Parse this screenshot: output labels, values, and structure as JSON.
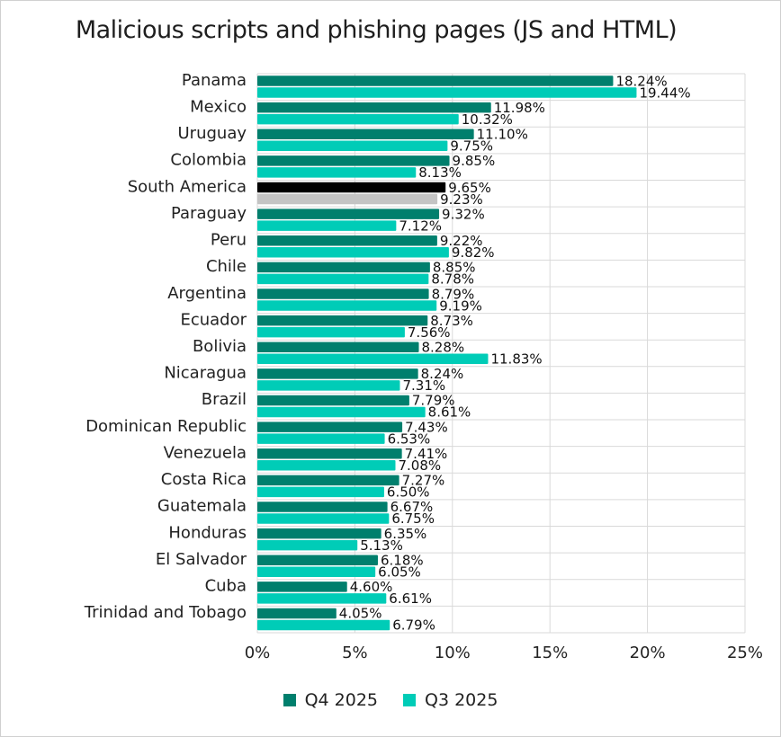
{
  "chart_data": {
    "type": "bar",
    "orientation": "horizontal",
    "title": "Malicious scripts and phishing pages (JS and HTML)",
    "categories": [
      "Panama",
      "Mexico",
      "Uruguay",
      "Colombia",
      "South America",
      "Paraguay",
      "Peru",
      "Chile",
      "Argentina",
      "Ecuador",
      "Bolivia",
      "Nicaragua",
      "Brazil",
      "Dominican Republic",
      "Venezuela",
      "Costa Rica",
      "Guatemala",
      "Honduras",
      "El Salvador",
      "Cuba",
      "Trinidad and Tobago"
    ],
    "series": [
      {
        "name": "Q4 2025",
        "color": "#007f6d",
        "highlight_color": "#000000",
        "values": [
          18.24,
          11.98,
          11.1,
          9.85,
          9.65,
          9.32,
          9.22,
          8.85,
          8.79,
          8.73,
          8.28,
          8.24,
          7.79,
          7.43,
          7.41,
          7.27,
          6.67,
          6.35,
          6.18,
          4.6,
          4.05
        ],
        "labels": [
          "18.24%",
          "11.98%",
          "11.10%",
          "9.85%",
          "9.65%",
          "9.32%",
          "9.22%",
          "8.85%",
          "8.79%",
          "8.73%",
          "8.28%",
          "8.24%",
          "7.79%",
          "7.43%",
          "7.41%",
          "7.27%",
          "6.67%",
          "6.35%",
          "6.18%",
          "4.60%",
          "4.05%"
        ]
      },
      {
        "name": "Q3 2025",
        "color": "#00ccb7",
        "highlight_color": "#c4c4c4",
        "values": [
          19.44,
          10.32,
          9.75,
          8.13,
          9.23,
          7.12,
          9.82,
          8.78,
          9.19,
          7.56,
          11.83,
          7.31,
          8.61,
          6.53,
          7.08,
          6.5,
          6.75,
          5.13,
          6.05,
          6.61,
          6.79
        ],
        "labels": [
          "19.44%",
          "10.32%",
          "9.75%",
          "8.13%",
          "9.23%",
          "7.12%",
          "9.82%",
          "8.78%",
          "9.19%",
          "7.56%",
          "11.83%",
          "7.31%",
          "8.61%",
          "6.53%",
          "7.08%",
          "6.50%",
          "6.75%",
          "5.13%",
          "6.05%",
          "6.61%",
          "6.79%"
        ]
      }
    ],
    "highlight_category": "South America",
    "xlim": [
      0,
      25
    ],
    "xticks": [
      0,
      5,
      10,
      15,
      20,
      25
    ],
    "xtick_labels": [
      "0%",
      "5%",
      "10%",
      "15%",
      "20%",
      "25%"
    ],
    "grid": true,
    "legend_position": "bottom-center"
  }
}
